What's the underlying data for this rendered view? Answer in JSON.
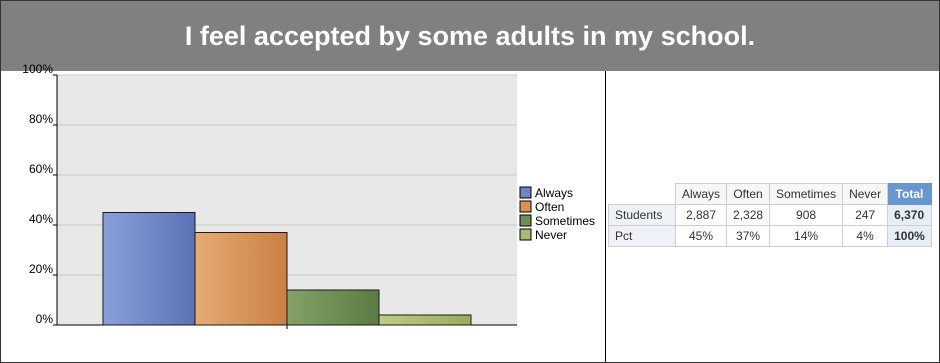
{
  "header": {
    "title": "I feel accepted by some adults in my school."
  },
  "chart_data": {
    "type": "bar",
    "categories": [
      "Always",
      "Often",
      "Sometimes",
      "Never"
    ],
    "values": [
      45,
      37,
      14,
      4
    ],
    "y_ticks": [
      "0%",
      "20%",
      "40%",
      "60%",
      "80%",
      "100%"
    ],
    "ylim": [
      0,
      100
    ],
    "colors": [
      "#6e86c6",
      "#d99358",
      "#6f8d55",
      "#a7ba6e"
    ],
    "legend": [
      "Always",
      "Often",
      "Sometimes",
      "Never"
    ],
    "legend_position": "right",
    "grid": true
  },
  "table": {
    "columns": [
      "Always",
      "Often",
      "Sometimes",
      "Never",
      "Total"
    ],
    "rows": [
      {
        "label": "Students",
        "values": [
          "2,887",
          "2,328",
          "908",
          "247",
          "6,370"
        ]
      },
      {
        "label": "Pct",
        "values": [
          "45%",
          "37%",
          "14%",
          "4%",
          "100%"
        ]
      }
    ]
  }
}
